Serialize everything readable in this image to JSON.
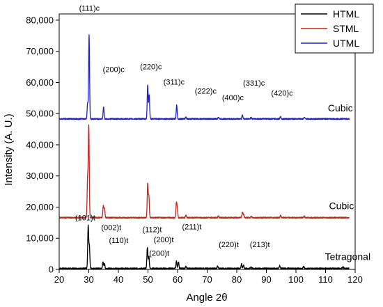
{
  "chart_data": {
    "type": "line",
    "xlabel": "Angle 2θ",
    "ylabel": "Intensity (A. U.)",
    "xlim": [
      20,
      120
    ],
    "ylim": [
      0,
      82000
    ],
    "xticks": [
      20,
      30,
      40,
      50,
      60,
      70,
      80,
      90,
      100,
      110,
      120
    ],
    "yticks": [
      0,
      10000,
      20000,
      30000,
      40000,
      50000,
      60000,
      70000,
      80000
    ],
    "ytick_labels": [
      "0",
      "10,000",
      "20,000",
      "30,000",
      "40,000",
      "50,000",
      "60,000",
      "70,000",
      "80,000"
    ],
    "legend_position": "top-right",
    "series": [
      {
        "name": "HTML",
        "color": "#000000",
        "baseline": 300,
        "peaks": [
          [
            29.8,
            13600
          ],
          [
            30.2,
            7000
          ],
          [
            34.8,
            2000
          ],
          [
            35.3,
            1500
          ],
          [
            49.8,
            6800
          ],
          [
            50.3,
            4000
          ],
          [
            59.6,
            2400
          ],
          [
            60.3,
            2200
          ],
          [
            62.8,
            600
          ],
          [
            73.5,
            700
          ],
          [
            81.6,
            1500
          ],
          [
            82.3,
            1000
          ],
          [
            84.8,
            500
          ],
          [
            94.5,
            900
          ],
          [
            102.6,
            700
          ],
          [
            115.9,
            500
          ]
        ]
      },
      {
        "name": "STML",
        "color": "#c0261e",
        "baseline": 16600,
        "peaks": [
          [
            29.6,
            12500
          ],
          [
            30.0,
            29200
          ],
          [
            34.9,
            3700
          ],
          [
            35.3,
            3000
          ],
          [
            49.9,
            10800
          ],
          [
            50.3,
            6800
          ],
          [
            59.6,
            4600
          ],
          [
            59.9,
            2700
          ],
          [
            62.8,
            800
          ],
          [
            73.8,
            500
          ],
          [
            81.9,
            1800
          ],
          [
            82.3,
            1000
          ],
          [
            84.9,
            400
          ],
          [
            94.8,
            700
          ],
          [
            102.8,
            500
          ]
        ]
      },
      {
        "name": "UTML",
        "color": "#1f1fcc",
        "baseline": 48300,
        "peaks": [
          [
            29.6,
            5000
          ],
          [
            30.1,
            27000
          ],
          [
            35.0,
            3800
          ],
          [
            49.9,
            10700
          ],
          [
            50.4,
            7600
          ],
          [
            59.7,
            4500
          ],
          [
            62.8,
            600
          ],
          [
            73.8,
            600
          ],
          [
            81.9,
            1300
          ],
          [
            84.8,
            500
          ],
          [
            94.8,
            700
          ],
          [
            102.8,
            400
          ]
        ]
      }
    ],
    "annotations": [
      {
        "text": "(111)c",
        "x": 30.2,
        "y": 83000
      },
      {
        "text": "(200)c",
        "x": 38.4,
        "y": 63300
      },
      {
        "text": "(220)c",
        "x": 51.0,
        "y": 64200
      },
      {
        "text": "(311)c",
        "x": 58.8,
        "y": 59300
      },
      {
        "text": "(222)c",
        "x": 69.5,
        "y": 56400
      },
      {
        "text": "(400)c",
        "x": 78.7,
        "y": 54300
      },
      {
        "text": "(331)c",
        "x": 85.8,
        "y": 59000
      },
      {
        "text": "(420)c",
        "x": 95.3,
        "y": 55700
      },
      {
        "text": "Cubic",
        "x": 115.0,
        "y": 50700,
        "kind": "phase"
      },
      {
        "text": "Cubic",
        "x": 115.4,
        "y": 19300,
        "kind": "phase"
      },
      {
        "text": "(101)t",
        "x": 28.8,
        "y": 15800
      },
      {
        "text": "(002)t",
        "x": 37.6,
        "y": 12600
      },
      {
        "text": "(110)t",
        "x": 40.1,
        "y": 8500
      },
      {
        "text": "(112)t",
        "x": 51.4,
        "y": 11900
      },
      {
        "text": "(200)t",
        "x": 55.3,
        "y": 8700
      },
      {
        "text": "(200)t",
        "x": 53.8,
        "y": 4400
      },
      {
        "text": "(211)t",
        "x": 64.8,
        "y": 12900
      },
      {
        "text": "(220)t",
        "x": 77.3,
        "y": 7200
      },
      {
        "text": "(213)t",
        "x": 87.8,
        "y": 7200
      },
      {
        "text": "Tetragonal",
        "x": 117.5,
        "y": 3000,
        "kind": "phase"
      }
    ]
  }
}
